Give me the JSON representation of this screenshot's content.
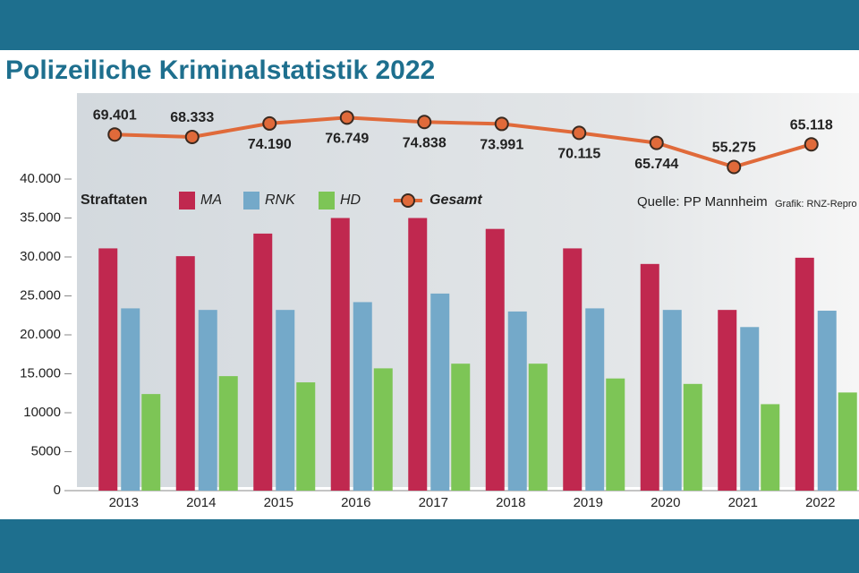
{
  "chart_data": {
    "type": "bar",
    "title": "Polizeiliche Kriminalstatistik 2022",
    "legend_title": "Straftaten",
    "source": "Quelle: PP Mannheim",
    "credit": "Grafik: RNZ-Repro",
    "categories": [
      "2013",
      "2014",
      "2015",
      "2016",
      "2017",
      "2018",
      "2019",
      "2020",
      "2021",
      "2022"
    ],
    "series": [
      {
        "name": "MA",
        "color": "#c0284f",
        "values": [
          31100,
          30100,
          33000,
          35000,
          35000,
          33600,
          31100,
          29100,
          23200,
          29900
        ]
      },
      {
        "name": "RNK",
        "color": "#74a9c9",
        "values": [
          23400,
          23200,
          23200,
          24200,
          25300,
          23000,
          23400,
          23200,
          21000,
          23100
        ]
      },
      {
        "name": "HD",
        "color": "#7dc556",
        "values": [
          12400,
          14700,
          13900,
          15700,
          16300,
          16300,
          14400,
          13700,
          11100,
          12600
        ]
      },
      {
        "name": "Gesamt",
        "color": "#e06a3a",
        "axis": "y2",
        "values": [
          69401,
          68333,
          74190,
          76749,
          74838,
          73991,
          70115,
          65744,
          55275,
          65118
        ],
        "value_labels": [
          "69.401",
          "68.333",
          "74.190",
          "76.749",
          "74.838",
          "73.991",
          "70.115",
          "65.744",
          "55.275",
          "65.118"
        ]
      }
    ],
    "ylim": [
      0,
      40000
    ],
    "yticks": [
      0,
      5000,
      10000,
      {
        "value": 15000,
        "label": "15.000"
      },
      {
        "value": 20000,
        "label": "20.000"
      },
      {
        "value": 25000,
        "label": "25.000"
      },
      {
        "value": 30000,
        "label": "30.000"
      },
      {
        "value": 35000,
        "label": "35.000"
      },
      {
        "value": 40000,
        "label": "40.000"
      }
    ],
    "y2lim": [
      50000,
      80000
    ]
  }
}
